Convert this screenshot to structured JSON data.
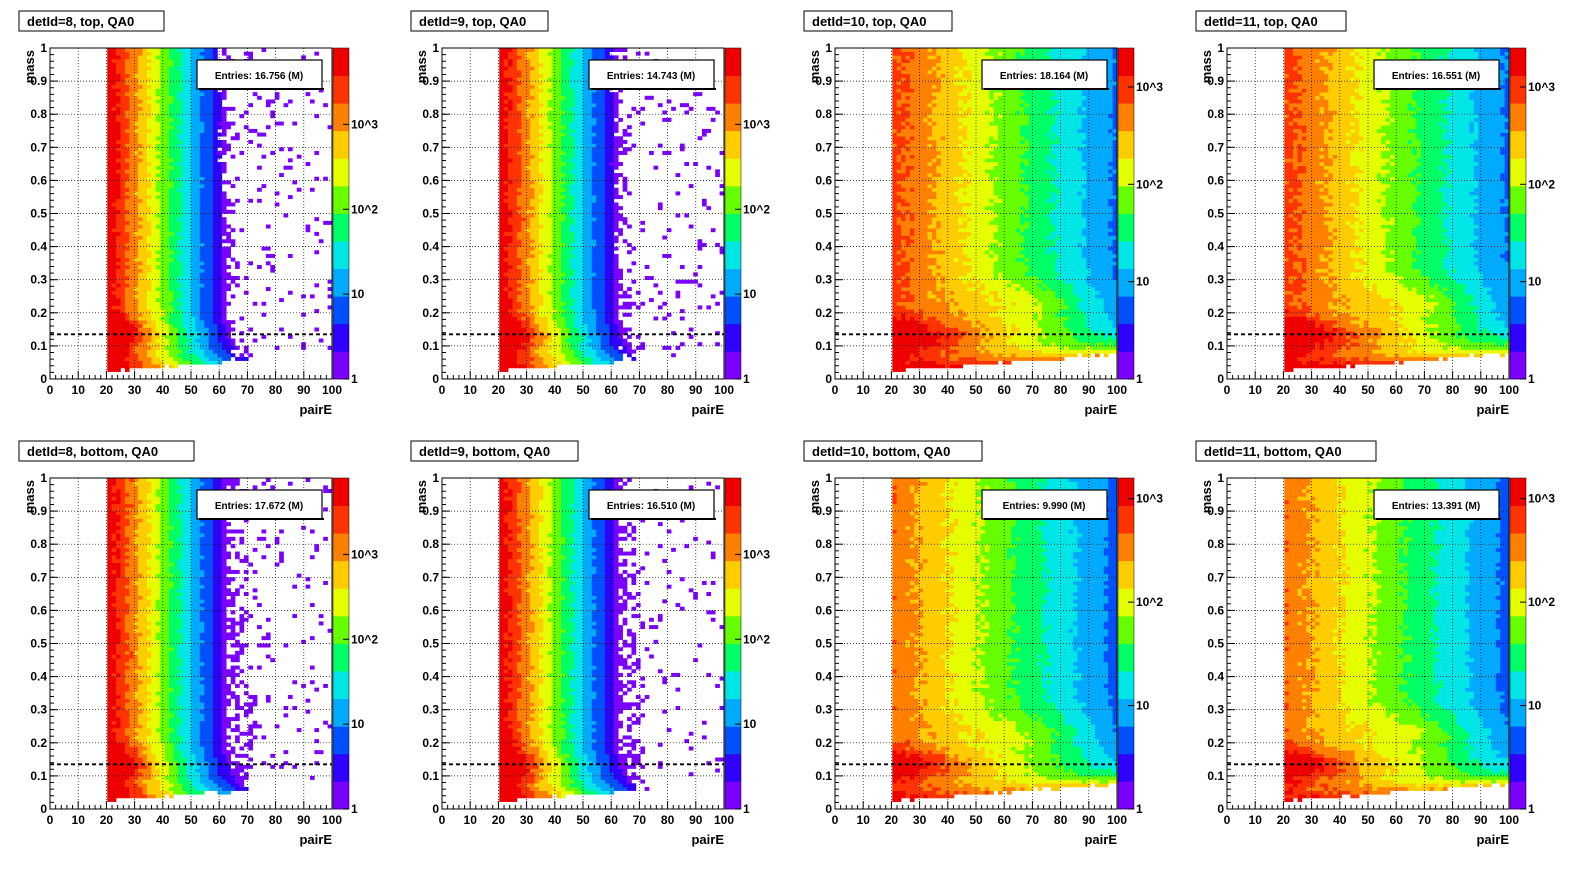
{
  "chart_data": {
    "type": "heatmap",
    "xlabel": "pairE",
    "ylabel": "mass",
    "xlim": [
      0,
      100
    ],
    "ylim": [
      0,
      1
    ],
    "z_scale": "log",
    "grid": true,
    "x_ticks": [
      "0",
      "10",
      "20",
      "30",
      "40",
      "50",
      "60",
      "70",
      "80",
      "90",
      "100"
    ],
    "y_ticks": [
      "0",
      "0.1",
      "0.2",
      "0.3",
      "0.4",
      "0.5",
      "0.6",
      "0.7",
      "0.8",
      "0.9",
      "1"
    ],
    "reference_line_y": 0.135,
    "stats_placement": "top-right",
    "colors": {
      "palette": [
        "#7a00ff",
        "#3000ff",
        "#0050ff",
        "#00aaff",
        "#00e6e6",
        "#00ff66",
        "#66ff00",
        "#e6ff00",
        "#ffcc00",
        "#ff8000",
        "#ff3300",
        "#ee0000"
      ],
      "reference_line": "#000000"
    },
    "panels": [
      {
        "title": "detId=8, top, QA0",
        "entries": "Entries: 16.756 (M)",
        "z_ticks": [
          "1",
          "10",
          "10^2",
          "10^3"
        ],
        "z_max_exp": 3.9,
        "xmin_data": 20,
        "tail": 58
      },
      {
        "title": "detId=9, top, QA0",
        "entries": "Entries: 14.743 (M)",
        "z_ticks": [
          "1",
          "10",
          "10^2",
          "10^3"
        ],
        "z_max_exp": 3.9,
        "xmin_data": 20,
        "tail": 58
      },
      {
        "title": "detId=10, top, QA0",
        "entries": "Entries: 18.164 (M)",
        "z_ticks": [
          "1",
          "10",
          "10^2",
          "10^3"
        ],
        "z_max_exp": 3.4,
        "xmin_data": 20,
        "tail": 100
      },
      {
        "title": "detId=11, top, QA0",
        "entries": "Entries: 16.551 (M)",
        "z_ticks": [
          "1",
          "10",
          "10^2",
          "10^3"
        ],
        "z_max_exp": 3.4,
        "xmin_data": 20,
        "tail": 100
      },
      {
        "title": "detId=8, bottom, QA0",
        "entries": "Entries: 17.672 (M)",
        "z_ticks": [
          "1",
          "10",
          "10^2",
          "10^3"
        ],
        "z_max_exp": 3.9,
        "xmin_data": 20,
        "tail": 62
      },
      {
        "title": "detId=9, bottom, QA0",
        "entries": "Entries: 16.510 (M)",
        "z_ticks": [
          "1",
          "10",
          "10^2",
          "10^3"
        ],
        "z_max_exp": 3.9,
        "xmin_data": 20,
        "tail": 62
      },
      {
        "title": "detId=10, bottom, QA0",
        "entries": "Entries: 9.990 (M)",
        "z_ticks": [
          "1",
          "10",
          "10^2",
          "10^3"
        ],
        "z_max_exp": 3.2,
        "xmin_data": 20,
        "tail": 100
      },
      {
        "title": "detId=11, bottom, QA0",
        "entries": "Entries: 13.391 (M)",
        "z_ticks": [
          "1",
          "10",
          "10^2",
          "10^3"
        ],
        "z_max_exp": 3.2,
        "xmin_data": 20,
        "tail": 100
      }
    ]
  }
}
